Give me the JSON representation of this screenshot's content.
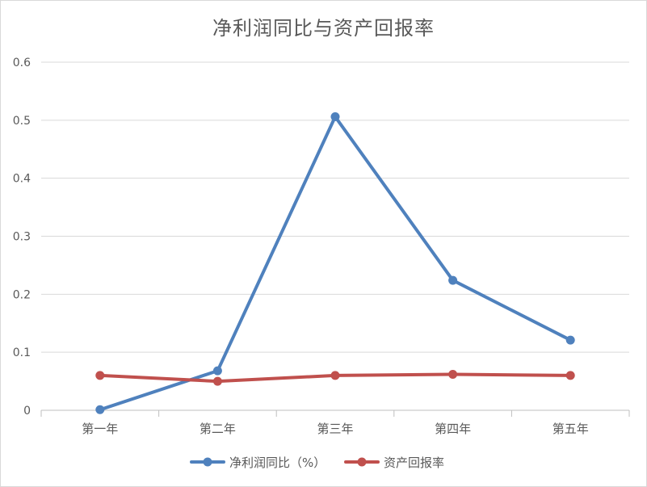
{
  "chart_data": {
    "type": "line",
    "title": "净利润同比与资产回报率",
    "categories": [
      "第一年",
      "第二年",
      "第三年",
      "第四年",
      "第五年"
    ],
    "ylim": [
      0,
      0.6
    ],
    "yticks": [
      "0",
      "0.1",
      "0.2",
      "0.3",
      "0.4",
      "0.5",
      "0.6"
    ],
    "grid": true,
    "legend_position": "bottom",
    "series": [
      {
        "name": "净利润同比（%）",
        "color": "#4f81bd",
        "values": [
          0.001,
          0.068,
          0.506,
          0.224,
          0.121
        ]
      },
      {
        "name": "资产回报率",
        "color": "#c0504d",
        "values": [
          0.06,
          0.05,
          0.06,
          0.062,
          0.06
        ]
      }
    ]
  }
}
